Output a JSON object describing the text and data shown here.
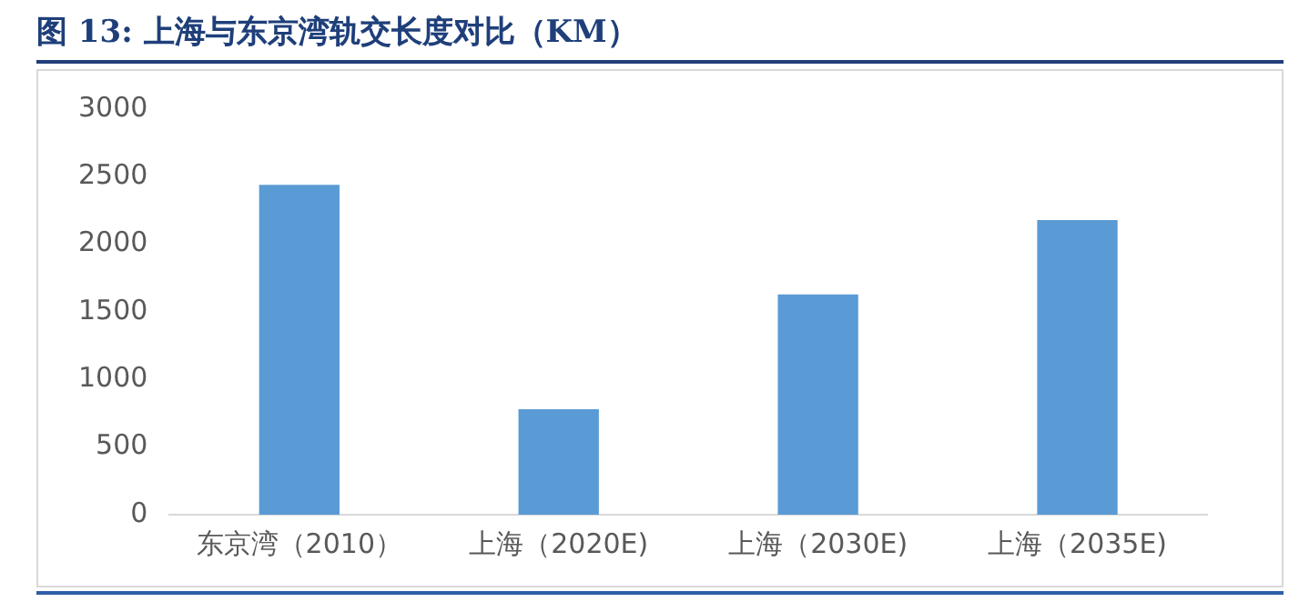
{
  "chart_data": {
    "type": "bar",
    "title": "图 13: 上海与东京湾轨交长度对比（KM）",
    "categories": [
      "东京湾（2010）",
      "上海（2020E)",
      "上海（2030E)",
      "上海（2035E)"
    ],
    "values": [
      2440,
      780,
      1630,
      2180
    ],
    "color": "#5b9bd5",
    "ylim": [
      0,
      3000
    ],
    "yticks": [
      0,
      500,
      1000,
      1500,
      2000,
      2500,
      3000
    ],
    "grid": false,
    "legend": false
  }
}
